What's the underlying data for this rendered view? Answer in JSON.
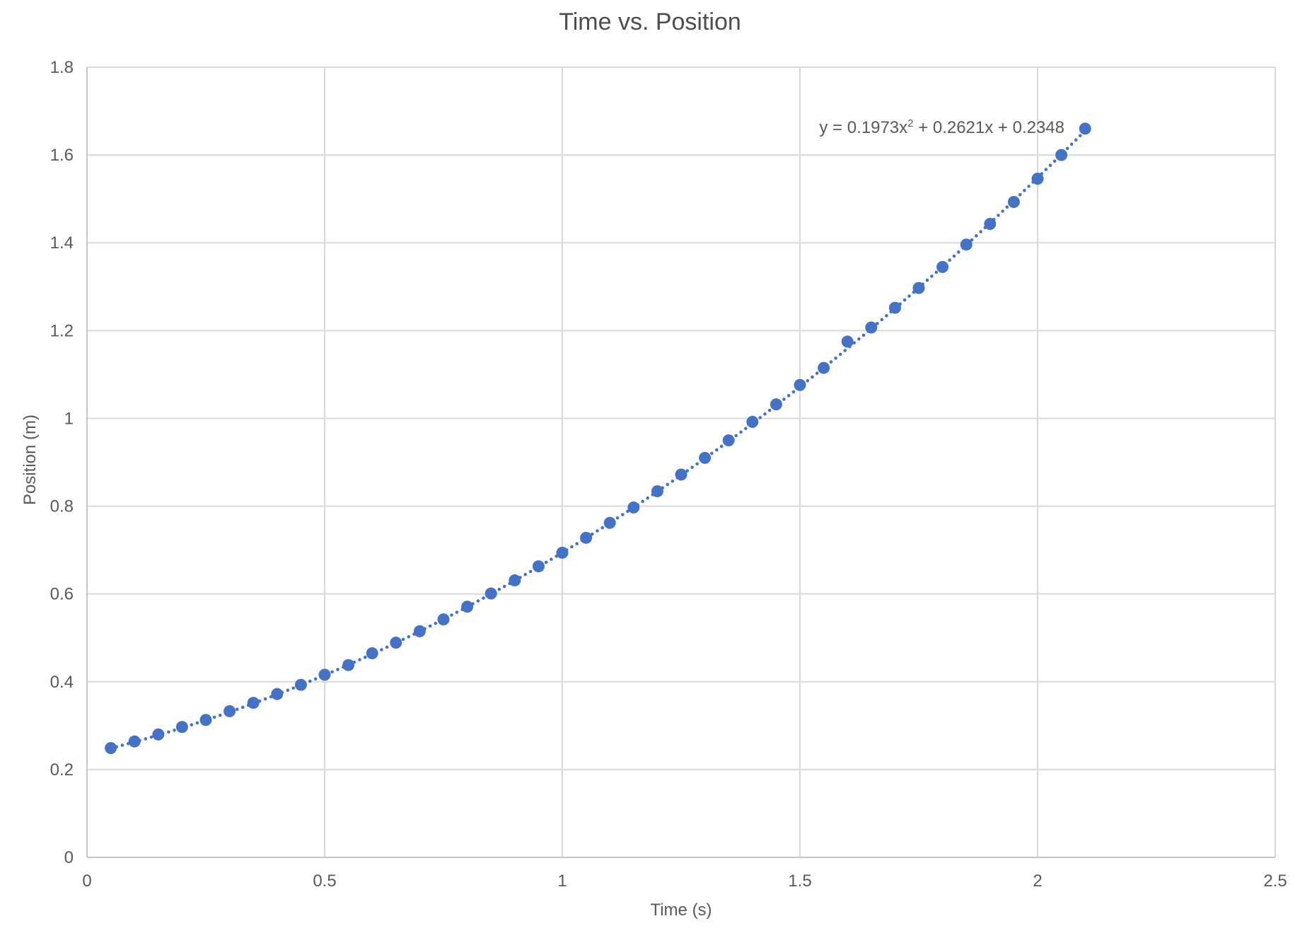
{
  "chart_data": {
    "type": "scatter",
    "title": "Time vs. Position",
    "xlabel": "Time (s)",
    "ylabel": "Position (m)",
    "xlim": [
      0,
      2.5
    ],
    "ylim": [
      0,
      1.8
    ],
    "x_ticks": [
      "0",
      "0.5",
      "1",
      "1.5",
      "2",
      "2.5"
    ],
    "y_ticks": [
      "0",
      "0.2",
      "0.4",
      "0.6",
      "0.8",
      "1",
      "1.2",
      "1.4",
      "1.6",
      "1.8"
    ],
    "grid": true,
    "legend": false,
    "marker_style": "filled-circle",
    "series": [
      {
        "name": "position",
        "x": [
          0.05,
          0.1,
          0.15,
          0.2,
          0.25,
          0.3,
          0.35,
          0.4,
          0.45,
          0.5,
          0.55,
          0.6,
          0.65,
          0.7,
          0.75,
          0.8,
          0.85,
          0.9,
          0.95,
          1.0,
          1.05,
          1.1,
          1.15,
          1.2,
          1.25,
          1.3,
          1.35,
          1.4,
          1.45,
          1.5,
          1.55,
          1.6,
          1.65,
          1.7,
          1.75,
          1.8,
          1.85,
          1.9,
          1.95,
          2.0,
          2.05,
          2.1
        ],
        "y": [
          0.249,
          0.264,
          0.28,
          0.297,
          0.313,
          0.333,
          0.352,
          0.372,
          0.393,
          0.416,
          0.438,
          0.465,
          0.489,
          0.515,
          0.542,
          0.571,
          0.601,
          0.631,
          0.663,
          0.694,
          0.728,
          0.762,
          0.797,
          0.834,
          0.872,
          0.91,
          0.95,
          0.992,
          1.032,
          1.076,
          1.115,
          1.175,
          1.207,
          1.252,
          1.297,
          1.345,
          1.396,
          1.443,
          1.493,
          1.546,
          1.6,
          1.66
        ]
      }
    ],
    "trendline": {
      "kind": "polynomial",
      "order": 2,
      "line_style": "dotted",
      "coefficients": {
        "a": 0.1973,
        "b": 0.2621,
        "c": 0.2348
      },
      "x_range": [
        0.05,
        2.105
      ],
      "equation": {
        "full": "y = 0.1973x² + 0.2621x + 0.2348",
        "prefix": "y = 0.1973x",
        "superscript": "2",
        "suffix": " + 0.2621x + 0.2348"
      }
    },
    "colors": {
      "marker": "#4472C4",
      "trendline": "#4472C4",
      "gridline": "#D9D9D9",
      "axis_line": "#C6C6C6",
      "tick_text": "#595959",
      "title_text": "#4D4D4D"
    }
  }
}
